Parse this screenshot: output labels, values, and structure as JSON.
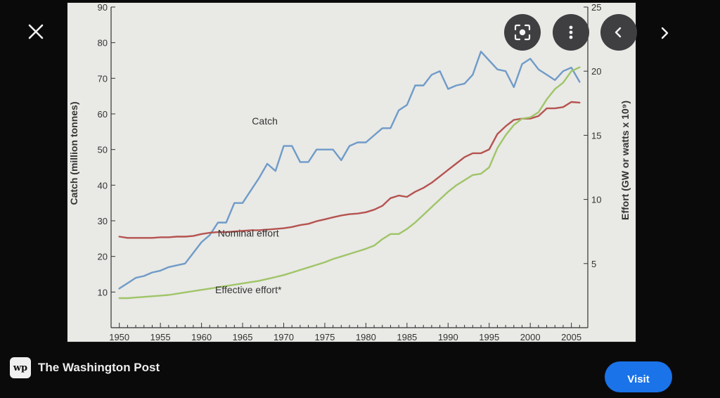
{
  "viewer": {
    "source_name": "The Washington Post",
    "source_logo_text": "wp",
    "visit_label": "Visit",
    "icons": {
      "close": "close-icon",
      "lens": "lens-icon",
      "more": "more-vert-icon",
      "collapse": "chevron-left-icon",
      "next": "chevron-right-icon"
    }
  },
  "chart_data": {
    "type": "line",
    "title": "",
    "ylabel": "Catch (million tonnes)",
    "y2label": "Effort (GW or watts x 10⁹)",
    "xlim": [
      1949,
      2007
    ],
    "ylim": [
      0,
      90
    ],
    "y2lim": [
      0,
      25
    ],
    "x_ticks": [
      1950,
      1955,
      1960,
      1965,
      1970,
      1975,
      1980,
      1985,
      1990,
      1995,
      2000,
      2005
    ],
    "y_ticks": [
      10,
      20,
      30,
      40,
      50,
      60,
      70,
      80,
      90
    ],
    "y2_ticks": [
      5,
      10,
      15,
      20,
      25
    ],
    "grid": false,
    "legend": "none",
    "series": [
      {
        "name": "Catch",
        "axis": "left",
        "color": "#6f9bc8",
        "label_at": [
          1967.7,
          57
        ],
        "x": [
          1950,
          1951,
          1952,
          1953,
          1954,
          1955,
          1956,
          1957,
          1958,
          1959,
          1960,
          1961,
          1962,
          1963,
          1964,
          1965,
          1966,
          1967,
          1968,
          1969,
          1970,
          1971,
          1972,
          1973,
          1974,
          1975,
          1976,
          1977,
          1978,
          1979,
          1980,
          1981,
          1982,
          1983,
          1984,
          1985,
          1986,
          1987,
          1988,
          1989,
          1990,
          1991,
          1992,
          1993,
          1994,
          1995,
          1996,
          1997,
          1998,
          1999,
          2000,
          2001,
          2002,
          2003,
          2004,
          2005,
          2006
        ],
        "y": [
          11,
          12.5,
          14,
          14.5,
          15.5,
          16,
          17,
          17.5,
          18,
          21,
          24,
          26,
          29.5,
          29.5,
          35,
          35,
          38.5,
          42,
          46,
          44,
          51,
          51,
          46.5,
          46.5,
          50,
          50,
          50,
          47,
          51,
          52,
          52,
          54,
          56,
          56,
          61,
          62.5,
          68,
          68,
          71,
          72,
          67,
          68,
          68.5,
          71,
          77.5,
          75,
          72.5,
          72,
          67.5,
          74,
          75.5,
          72.5,
          71,
          69.5,
          72,
          73,
          69
        ]
      },
      {
        "name": "Nominal effort",
        "axis": "right",
        "color": "#b5534f",
        "label_at": [
          1965.7,
          7.1
        ],
        "x": [
          1950,
          1951,
          1952,
          1953,
          1954,
          1955,
          1956,
          1957,
          1958,
          1959,
          1960,
          1961,
          1962,
          1963,
          1964,
          1965,
          1966,
          1967,
          1968,
          1969,
          1970,
          1971,
          1972,
          1973,
          1974,
          1975,
          1976,
          1977,
          1978,
          1979,
          1980,
          1981,
          1982,
          1983,
          1984,
          1985,
          1986,
          1987,
          1988,
          1989,
          1990,
          1991,
          1992,
          1993,
          1994,
          1995,
          1996,
          1997,
          1998,
          1999,
          2000,
          2001,
          2002,
          2003,
          2004,
          2005,
          2006
        ],
        "y": [
          7.1,
          7.0,
          7.0,
          7.0,
          7.0,
          7.05,
          7.05,
          7.1,
          7.1,
          7.15,
          7.3,
          7.4,
          7.45,
          7.45,
          7.5,
          7.55,
          7.6,
          7.6,
          7.65,
          7.7,
          7.75,
          7.85,
          8.0,
          8.1,
          8.3,
          8.45,
          8.6,
          8.75,
          8.85,
          8.9,
          9.0,
          9.2,
          9.5,
          10.1,
          10.3,
          10.2,
          10.6,
          10.9,
          11.3,
          11.8,
          12.3,
          12.8,
          13.3,
          13.6,
          13.6,
          13.9,
          15.1,
          15.7,
          16.2,
          16.3,
          16.3,
          16.5,
          17.1,
          17.1,
          17.2,
          17.6,
          17.55
        ]
      },
      {
        "name": "Effective effort*",
        "axis": "right",
        "color": "#9fc567",
        "label_at": [
          1965.7,
          2.7
        ],
        "x": [
          1950,
          1951,
          1952,
          1953,
          1954,
          1955,
          1956,
          1957,
          1958,
          1959,
          1960,
          1961,
          1962,
          1963,
          1964,
          1965,
          1966,
          1967,
          1968,
          1969,
          1970,
          1971,
          1972,
          1973,
          1974,
          1975,
          1976,
          1977,
          1978,
          1979,
          1980,
          1981,
          1982,
          1983,
          1984,
          1985,
          1986,
          1987,
          1988,
          1989,
          1990,
          1991,
          1992,
          1993,
          1994,
          1995,
          1996,
          1997,
          1998,
          1999,
          2000,
          2001,
          2002,
          2003,
          2004,
          2005,
          2006
        ],
        "y": [
          2.3,
          2.3,
          2.35,
          2.4,
          2.45,
          2.5,
          2.55,
          2.65,
          2.75,
          2.85,
          2.95,
          3.05,
          3.15,
          3.25,
          3.35,
          3.45,
          3.55,
          3.65,
          3.8,
          3.95,
          4.1,
          4.3,
          4.5,
          4.7,
          4.9,
          5.1,
          5.35,
          5.55,
          5.75,
          5.95,
          6.15,
          6.4,
          6.9,
          7.3,
          7.3,
          7.7,
          8.2,
          8.8,
          9.4,
          10.0,
          10.6,
          11.1,
          11.5,
          11.9,
          12.0,
          12.5,
          14.0,
          15.0,
          15.8,
          16.3,
          16.4,
          16.8,
          17.8,
          18.6,
          19.1,
          20.0,
          20.3
        ]
      }
    ]
  }
}
